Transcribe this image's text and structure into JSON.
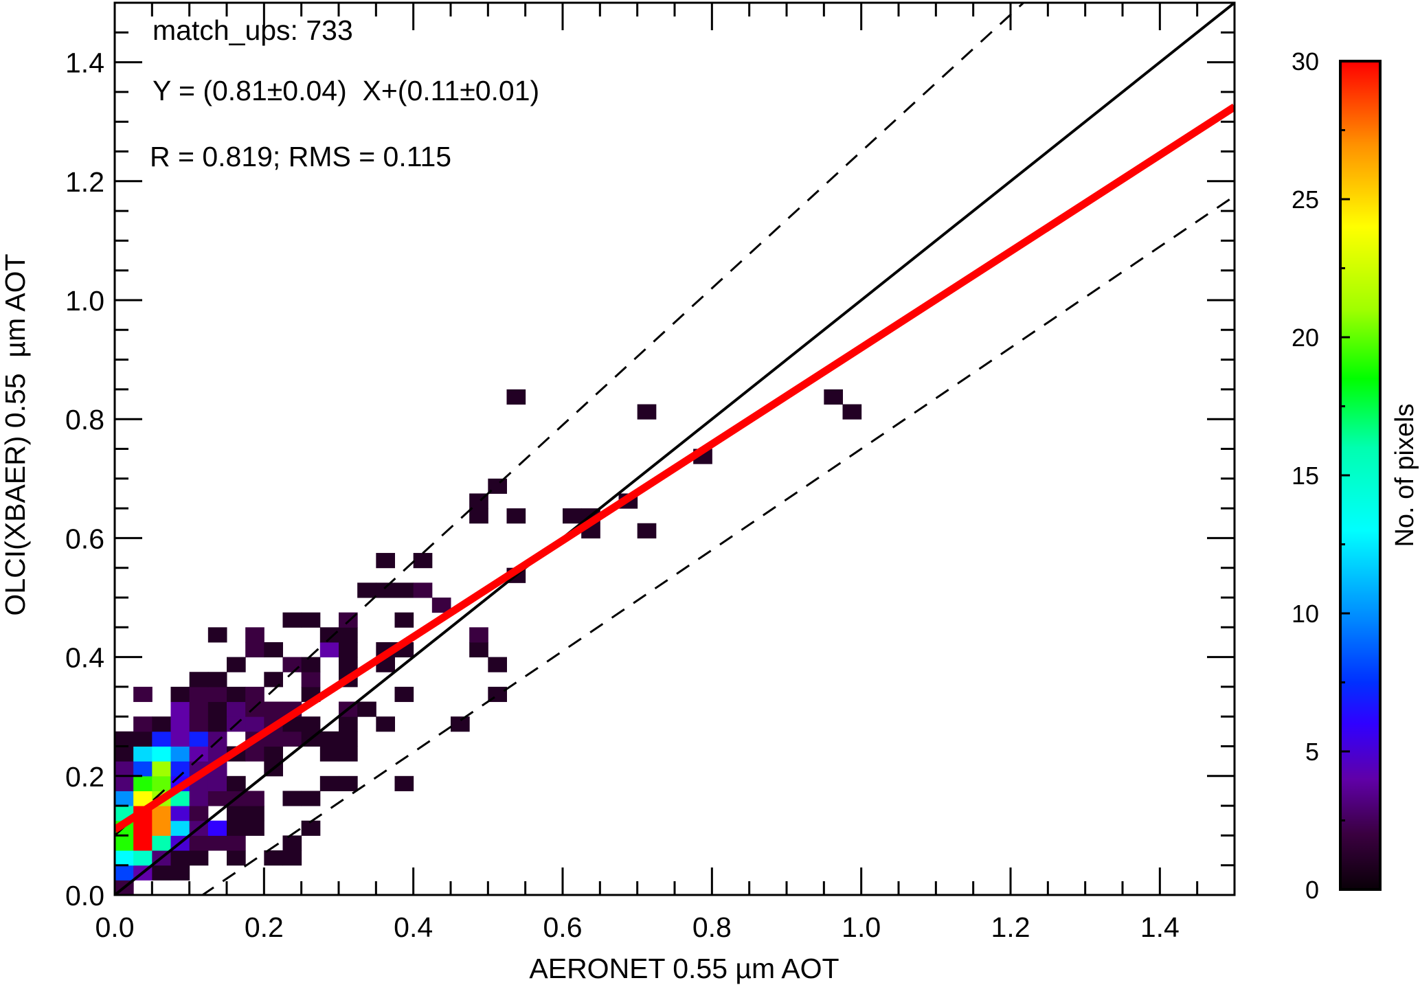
{
  "chart_data": {
    "type": "heatmap",
    "subtype": "2D density scatter with regression",
    "xlabel": "AERONET 0.55 µm AOT",
    "ylabel": "OLCI(XBAER) 0.55  µm AOT",
    "xlim": [
      0,
      1.5
    ],
    "ylim": [
      0,
      1.5
    ],
    "x_ticks": [
      "0.0",
      "0.2",
      "0.4",
      "0.6",
      "0.8",
      "1.0",
      "1.2",
      "1.4"
    ],
    "y_ticks": [
      "0.0",
      "0.2",
      "0.4",
      "0.6",
      "0.8",
      "1.0",
      "1.2",
      "1.4"
    ],
    "x_tick_values": [
      0,
      0.2,
      0.4,
      0.6,
      0.8,
      1.0,
      1.2,
      1.4
    ],
    "y_tick_values": [
      0,
      0.2,
      0.4,
      0.6,
      0.8,
      1.0,
      1.2,
      1.4
    ],
    "bin_size": 0.025,
    "annotations": {
      "matchups": "match_ups: 733",
      "equation": "Y = (0.81±0.04)  X+(0.11±0.01)",
      "stats": "R = 0.819; RMS = 0.115"
    },
    "regression": {
      "slope": 0.81,
      "intercept": 0.11,
      "color": "#ff0000"
    },
    "one_to_one": {
      "slope": 1,
      "intercept": 0,
      "color": "#000000"
    },
    "envelope": {
      "upper": {
        "slope": 1.15,
        "intercept": 0.1
      },
      "lower": {
        "slope": 0.85,
        "intercept": -0.1
      }
    },
    "colorbar": {
      "label": "No. of pixels",
      "range": [
        0,
        30
      ],
      "tick_labels": [
        "0",
        "5",
        "10",
        "15",
        "20",
        "25",
        "30"
      ],
      "tick_values": [
        0,
        5,
        10,
        15,
        20,
        25,
        30
      ],
      "stops": [
        {
          "v": 0,
          "c": "#0a0008"
        },
        {
          "v": 2,
          "c": "#3a0040"
        },
        {
          "v": 4,
          "c": "#6000a8"
        },
        {
          "v": 6,
          "c": "#3000ff"
        },
        {
          "v": 7.5,
          "c": "#0030ff"
        },
        {
          "v": 10,
          "c": "#0090ff"
        },
        {
          "v": 13,
          "c": "#00ffff"
        },
        {
          "v": 16,
          "c": "#00ffb0"
        },
        {
          "v": 18.5,
          "c": "#00ff00"
        },
        {
          "v": 21,
          "c": "#a0ff00"
        },
        {
          "v": 24,
          "c": "#ffff00"
        },
        {
          "v": 27,
          "c": "#ff9000"
        },
        {
          "v": 30,
          "c": "#ff0000"
        }
      ]
    },
    "bins": [
      [
        0,
        0,
        2
      ],
      [
        0,
        1,
        8
      ],
      [
        1,
        1,
        4
      ],
      [
        2,
        1,
        1
      ],
      [
        3,
        1,
        1
      ],
      [
        0,
        2,
        13
      ],
      [
        1,
        2,
        15
      ],
      [
        2,
        2,
        3
      ],
      [
        3,
        2,
        1
      ],
      [
        4,
        2,
        1
      ],
      [
        6,
        2,
        1
      ],
      [
        8,
        2,
        1
      ],
      [
        9,
        2,
        1
      ],
      [
        0,
        3,
        19
      ],
      [
        1,
        3,
        30
      ],
      [
        2,
        3,
        16
      ],
      [
        3,
        3,
        5
      ],
      [
        4,
        3,
        2
      ],
      [
        5,
        3,
        2
      ],
      [
        6,
        3,
        2
      ],
      [
        9,
        3,
        1
      ],
      [
        0,
        4,
        19
      ],
      [
        1,
        4,
        30
      ],
      [
        2,
        4,
        27
      ],
      [
        3,
        4,
        12
      ],
      [
        4,
        4,
        3
      ],
      [
        5,
        4,
        6
      ],
      [
        6,
        4,
        1
      ],
      [
        7,
        4,
        1
      ],
      [
        10,
        4,
        1
      ],
      [
        0,
        5,
        16
      ],
      [
        1,
        5,
        30
      ],
      [
        2,
        5,
        27
      ],
      [
        3,
        5,
        5
      ],
      [
        4,
        5,
        2
      ],
      [
        6,
        5,
        1
      ],
      [
        7,
        5,
        1
      ],
      [
        0,
        6,
        10
      ],
      [
        1,
        6,
        24
      ],
      [
        2,
        6,
        21
      ],
      [
        3,
        6,
        16
      ],
      [
        4,
        6,
        3
      ],
      [
        5,
        6,
        2
      ],
      [
        6,
        6,
        2
      ],
      [
        7,
        6,
        2
      ],
      [
        9,
        6,
        1
      ],
      [
        10,
        6,
        1
      ],
      [
        0,
        7,
        3
      ],
      [
        1,
        7,
        19
      ],
      [
        2,
        7,
        20
      ],
      [
        3,
        7,
        6
      ],
      [
        4,
        7,
        3
      ],
      [
        5,
        7,
        3
      ],
      [
        6,
        7,
        1
      ],
      [
        11,
        7,
        1
      ],
      [
        12,
        7,
        1
      ],
      [
        15,
        7,
        1
      ],
      [
        0,
        8,
        3
      ],
      [
        1,
        8,
        8
      ],
      [
        2,
        8,
        21
      ],
      [
        3,
        8,
        7
      ],
      [
        4,
        8,
        3
      ],
      [
        5,
        8,
        3
      ],
      [
        8,
        8,
        1
      ],
      [
        0,
        9,
        1
      ],
      [
        1,
        9,
        12
      ],
      [
        2,
        9,
        13
      ],
      [
        3,
        9,
        10
      ],
      [
        4,
        9,
        4
      ],
      [
        5,
        9,
        3
      ],
      [
        6,
        9,
        1
      ],
      [
        7,
        9,
        2
      ],
      [
        8,
        9,
        1
      ],
      [
        11,
        9,
        1
      ],
      [
        12,
        9,
        1
      ],
      [
        0,
        10,
        1
      ],
      [
        1,
        10,
        1
      ],
      [
        2,
        10,
        7
      ],
      [
        3,
        10,
        4
      ],
      [
        4,
        10,
        7
      ],
      [
        5,
        10,
        3
      ],
      [
        7,
        10,
        2
      ],
      [
        8,
        10,
        2
      ],
      [
        9,
        10,
        2
      ],
      [
        10,
        10,
        1
      ],
      [
        11,
        10,
        1
      ],
      [
        12,
        10,
        1
      ],
      [
        1,
        11,
        2
      ],
      [
        2,
        11,
        1
      ],
      [
        3,
        11,
        4
      ],
      [
        4,
        11,
        2
      ],
      [
        5,
        11,
        1
      ],
      [
        6,
        11,
        3
      ],
      [
        7,
        11,
        3
      ],
      [
        8,
        11,
        2
      ],
      [
        9,
        11,
        1
      ],
      [
        10,
        11,
        1
      ],
      [
        12,
        11,
        1
      ],
      [
        14,
        11,
        1
      ],
      [
        18,
        11,
        1
      ],
      [
        3,
        12,
        4
      ],
      [
        4,
        12,
        2
      ],
      [
        5,
        12,
        1
      ],
      [
        6,
        12,
        3
      ],
      [
        7,
        12,
        2
      ],
      [
        8,
        12,
        2
      ],
      [
        9,
        12,
        2
      ],
      [
        12,
        12,
        2
      ],
      [
        13,
        12,
        1
      ],
      [
        1,
        13,
        2
      ],
      [
        3,
        13,
        1
      ],
      [
        4,
        13,
        2
      ],
      [
        5,
        13,
        2
      ],
      [
        6,
        13,
        1
      ],
      [
        7,
        13,
        2
      ],
      [
        10,
        13,
        1
      ],
      [
        15,
        13,
        1
      ],
      [
        20,
        13,
        1
      ],
      [
        4,
        14,
        1
      ],
      [
        5,
        14,
        1
      ],
      [
        8,
        14,
        1
      ],
      [
        10,
        14,
        2
      ],
      [
        12,
        14,
        1
      ],
      [
        6,
        15,
        1
      ],
      [
        9,
        15,
        2
      ],
      [
        10,
        15,
        1
      ],
      [
        12,
        15,
        1
      ],
      [
        14,
        15,
        1
      ],
      [
        20,
        15,
        1
      ],
      [
        7,
        16,
        2
      ],
      [
        8,
        16,
        1
      ],
      [
        11,
        16,
        4
      ],
      [
        12,
        16,
        1
      ],
      [
        14,
        16,
        1
      ],
      [
        15,
        16,
        1
      ],
      [
        19,
        16,
        1
      ],
      [
        5,
        17,
        1
      ],
      [
        7,
        17,
        2
      ],
      [
        11,
        17,
        1
      ],
      [
        12,
        17,
        1
      ],
      [
        19,
        17,
        2
      ],
      [
        9,
        18,
        1
      ],
      [
        10,
        18,
        1
      ],
      [
        12,
        18,
        2
      ],
      [
        15,
        18,
        1
      ],
      [
        17,
        19,
        2
      ],
      [
        13,
        20,
        1
      ],
      [
        14,
        20,
        1
      ],
      [
        15,
        20,
        1
      ],
      [
        16,
        20,
        2
      ],
      [
        21,
        21,
        1
      ],
      [
        14,
        22,
        1
      ],
      [
        16,
        22,
        1
      ],
      [
        28,
        24,
        1
      ],
      [
        25,
        24,
        1
      ],
      [
        19,
        25,
        1
      ],
      [
        21,
        25,
        1
      ],
      [
        24,
        25,
        1
      ],
      [
        25,
        25,
        1
      ],
      [
        19,
        26,
        1
      ],
      [
        27,
        26,
        1
      ],
      [
        20,
        27,
        1
      ],
      [
        31,
        29,
        1
      ],
      [
        28,
        32,
        1
      ],
      [
        39,
        32,
        1
      ],
      [
        21,
        33,
        1
      ],
      [
        38,
        33,
        1
      ]
    ]
  }
}
